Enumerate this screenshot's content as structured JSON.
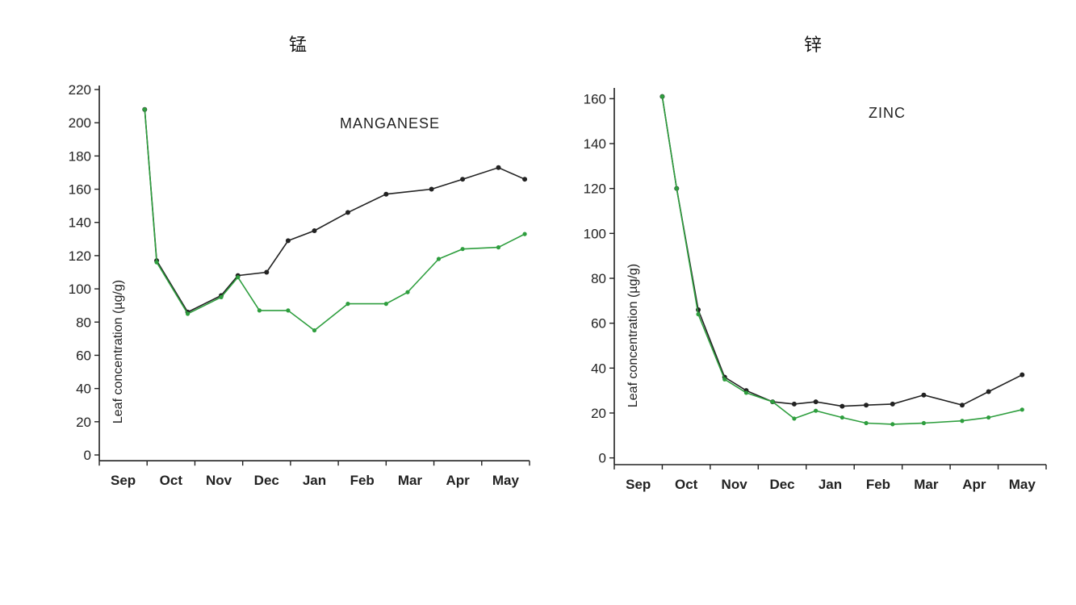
{
  "headings": {
    "left": "锰",
    "right": "锌"
  },
  "chart_data": [
    {
      "type": "line",
      "title": "MANGANESE",
      "ylabel": "Leaf concentration (µg/g)",
      "xlabel": "",
      "categories": [
        "Sep",
        "Oct",
        "Nov",
        "Dec",
        "Jan",
        "Feb",
        "Mar",
        "Apr",
        "May"
      ],
      "yticks": [
        0,
        20,
        40,
        60,
        80,
        100,
        120,
        140,
        160,
        180,
        200,
        220
      ],
      "ylim": [
        0,
        220
      ],
      "xlim": [
        0,
        9
      ],
      "grid": false,
      "legend": "none",
      "colors": {
        "series_a": "#222222",
        "series_b": "#2e9e3e"
      },
      "series": [
        {
          "x": [
            0.95,
            1.2,
            1.85,
            2.55,
            2.9,
            3.5,
            3.95,
            4.5,
            5.2,
            6.0,
            6.95,
            7.6,
            8.35,
            8.9
          ],
          "y": [
            208,
            117,
            86,
            96,
            108,
            110,
            129,
            135,
            146,
            157,
            160,
            166,
            173,
            166
          ]
        },
        {
          "x": [
            0.95,
            1.2,
            1.85,
            2.55,
            2.9,
            3.35,
            3.95,
            4.5,
            5.2,
            6.0,
            6.45,
            7.1,
            7.6,
            8.35,
            8.9
          ],
          "y": [
            208,
            116,
            85,
            95,
            107,
            87,
            87,
            75,
            91,
            91,
            98,
            118,
            124,
            125,
            133
          ]
        }
      ]
    },
    {
      "type": "line",
      "title": "ZINC",
      "ylabel": "Leaf concentration (µg/g)",
      "xlabel": "",
      "categories": [
        "Sep",
        "Oct",
        "Nov",
        "Dec",
        "Jan",
        "Feb",
        "Mar",
        "Apr",
        "May"
      ],
      "yticks": [
        0,
        20,
        40,
        60,
        80,
        100,
        120,
        140,
        160
      ],
      "ylim": [
        -3,
        163
      ],
      "xlim": [
        0,
        9
      ],
      "grid": false,
      "legend": "none",
      "colors": {
        "series_a": "#222222",
        "series_b": "#2e9e3e"
      },
      "series": [
        {
          "x": [
            1.0,
            1.3,
            1.75,
            2.3,
            2.75,
            3.3,
            3.75,
            4.2,
            4.75,
            5.25,
            5.8,
            6.45,
            7.25,
            7.8,
            8.5
          ],
          "y": [
            161,
            120,
            66,
            36,
            30,
            25,
            24,
            25,
            23,
            23.5,
            24,
            28,
            23.5,
            29.5,
            37
          ]
        },
        {
          "x": [
            1.0,
            1.3,
            1.75,
            2.3,
            2.75,
            3.3,
            3.75,
            4.2,
            4.75,
            5.25,
            5.8,
            6.45,
            7.25,
            7.8,
            8.5
          ],
          "y": [
            161,
            120,
            64,
            35,
            29,
            25,
            17.5,
            21,
            18,
            15.5,
            15,
            15.5,
            16.5,
            18,
            21.5
          ]
        }
      ]
    }
  ]
}
